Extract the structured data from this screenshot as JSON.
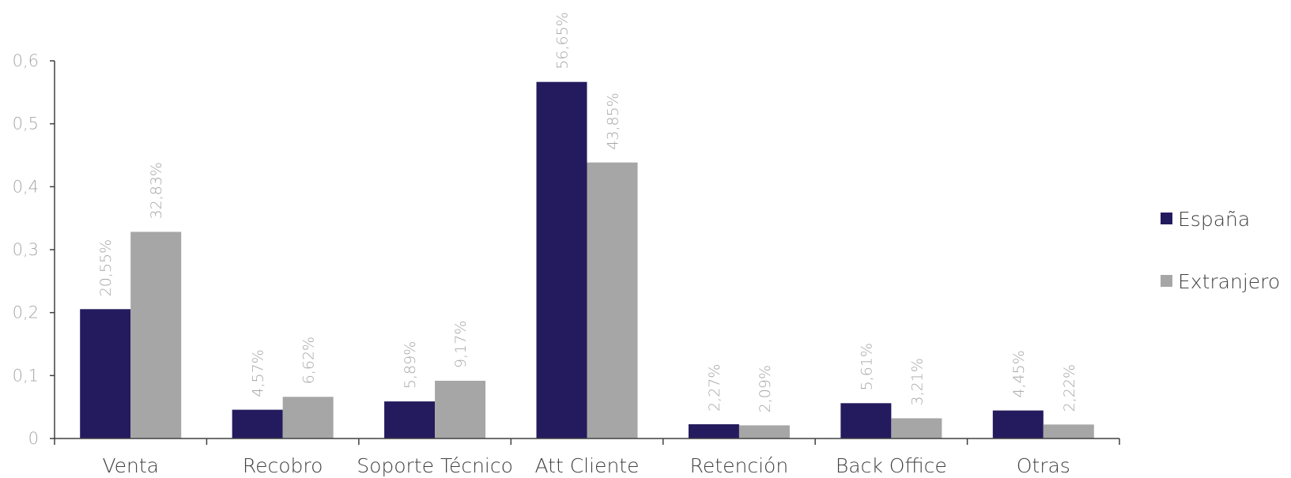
{
  "chart_data": {
    "type": "bar",
    "categories": [
      "Venta",
      "Recobro",
      "Soporte Técnico",
      "Att Cliente",
      "Retención",
      "Back Office",
      "Otras"
    ],
    "series": [
      {
        "name": "España",
        "color": "#241b5e",
        "values": [
          0.2055,
          0.0457,
          0.0589,
          0.5665,
          0.0227,
          0.0561,
          0.0445
        ],
        "labels": [
          "20,55%",
          "4,57%",
          "5,89%",
          "56,65%",
          "2,27%",
          "5,61%",
          "4,45%"
        ]
      },
      {
        "name": "Extranjero",
        "color": "#a6a6a6",
        "values": [
          0.3283,
          0.0662,
          0.0917,
          0.4385,
          0.0209,
          0.0321,
          0.0222
        ],
        "labels": [
          "32,83%",
          "6,62%",
          "9,17%",
          "43,85%",
          "2,09%",
          "3,21%",
          "2,22%"
        ]
      }
    ],
    "yticks": [
      "0",
      "0,1",
      "0,2",
      "0,3",
      "0,4",
      "0,5",
      "0,6"
    ],
    "ylim": [
      0,
      0.6
    ],
    "grid": false,
    "legend_position": "right"
  }
}
